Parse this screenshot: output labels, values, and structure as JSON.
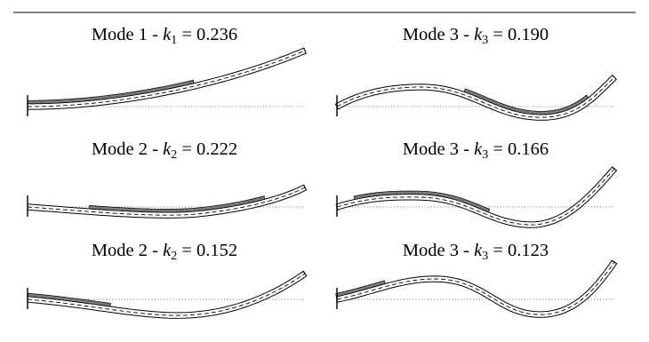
{
  "panels": [
    {
      "mode_text": "Mode 1",
      "k_symbol": "k",
      "k_sub": "1",
      "k_value": "0.236",
      "mode_number": 1,
      "patch_from": 0.0,
      "patch_to": 0.56
    },
    {
      "mode_text": "Mode 3",
      "k_symbol": "k",
      "k_sub": "3",
      "k_value": "0.190",
      "mode_number": 3,
      "patch_from": 0.44,
      "patch_to": 0.87
    },
    {
      "mode_text": "Mode 2",
      "k_symbol": "k",
      "k_sub": "2",
      "k_value": "0.222",
      "mode_number": 2,
      "patch_from": 0.17,
      "patch_to": 0.78
    },
    {
      "mode_text": "Mode 3",
      "k_symbol": "k",
      "k_sub": "3",
      "k_value": "0.166",
      "mode_number": 3,
      "patch_from": 0.08,
      "patch_to": 0.53
    },
    {
      "mode_text": "Mode 2",
      "k_symbol": "k",
      "k_sub": "2",
      "k_value": "0.152",
      "mode_number": 2,
      "patch_from": 0.0,
      "patch_to": 0.27
    },
    {
      "mode_text": "Mode 3",
      "k_symbol": "k",
      "k_sub": "3",
      "k_value": "0.123",
      "mode_number": 3,
      "patch_from": 0.0,
      "patch_to": 0.17
    }
  ],
  "colors": {
    "line": "#000000",
    "patch": "#7a7a7a",
    "beam_fill": "#ffffff"
  }
}
